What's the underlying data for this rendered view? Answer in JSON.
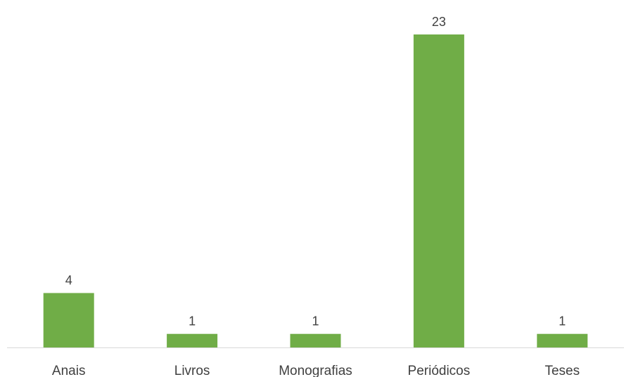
{
  "chart_data": {
    "type": "bar",
    "categories": [
      "Anais",
      "Livros",
      "Monografias",
      "Periódicos",
      "Teses"
    ],
    "values": [
      4,
      1,
      1,
      23,
      1
    ],
    "title": "",
    "xlabel": "",
    "ylabel": "",
    "ylim": [
      0,
      23
    ],
    "grid": false,
    "legend": "none",
    "data_labels": true,
    "colors": {
      "bar": "#70AD47",
      "axis": "#D9D9D9",
      "text": "#404040"
    }
  }
}
